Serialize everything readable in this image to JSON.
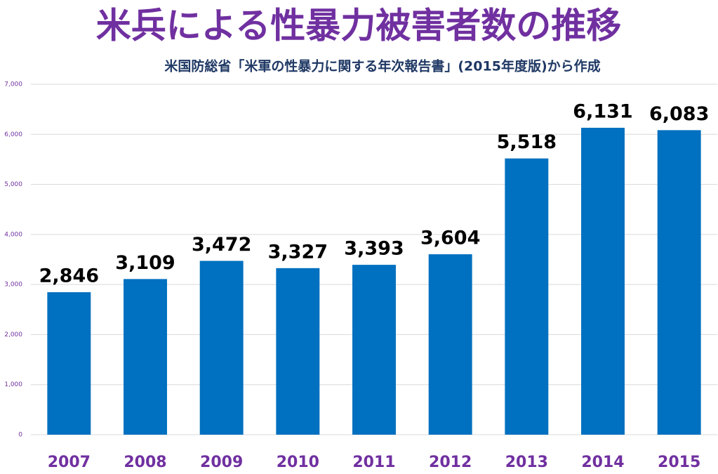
{
  "chart_data": {
    "type": "bar",
    "title": "米兵による性暴力被害者数の推移",
    "subtitle": "米国防総省「米軍の性暴力に関する年次報告書」(2015年度版)から作成",
    "categories": [
      "2007",
      "2008",
      "2009",
      "2010",
      "2011",
      "2012",
      "2013",
      "2014",
      "2015"
    ],
    "values": [
      2846,
      3109,
      3472,
      3327,
      3393,
      3604,
      5518,
      6131,
      6083
    ],
    "value_labels": [
      "2,846",
      "3,109",
      "3,472",
      "3,327",
      "3,393",
      "3,604",
      "5,518",
      "6,131",
      "6,083"
    ],
    "color": "#0070c0",
    "ylim": [
      0,
      7000
    ],
    "yticks": [
      0,
      {
        "value": 1000,
        "label": "1,000"
      },
      {
        "value": 2000,
        "label": "2,000"
      },
      {
        "value": 3000,
        "label": "3,000"
      },
      {
        "value": 4000,
        "label": "4,000"
      },
      {
        "value": 5000,
        "label": "5,000"
      },
      {
        "value": 6000,
        "label": "6,000"
      },
      {
        "value": 7000,
        "label": "7,000"
      }
    ],
    "grid": true
  }
}
